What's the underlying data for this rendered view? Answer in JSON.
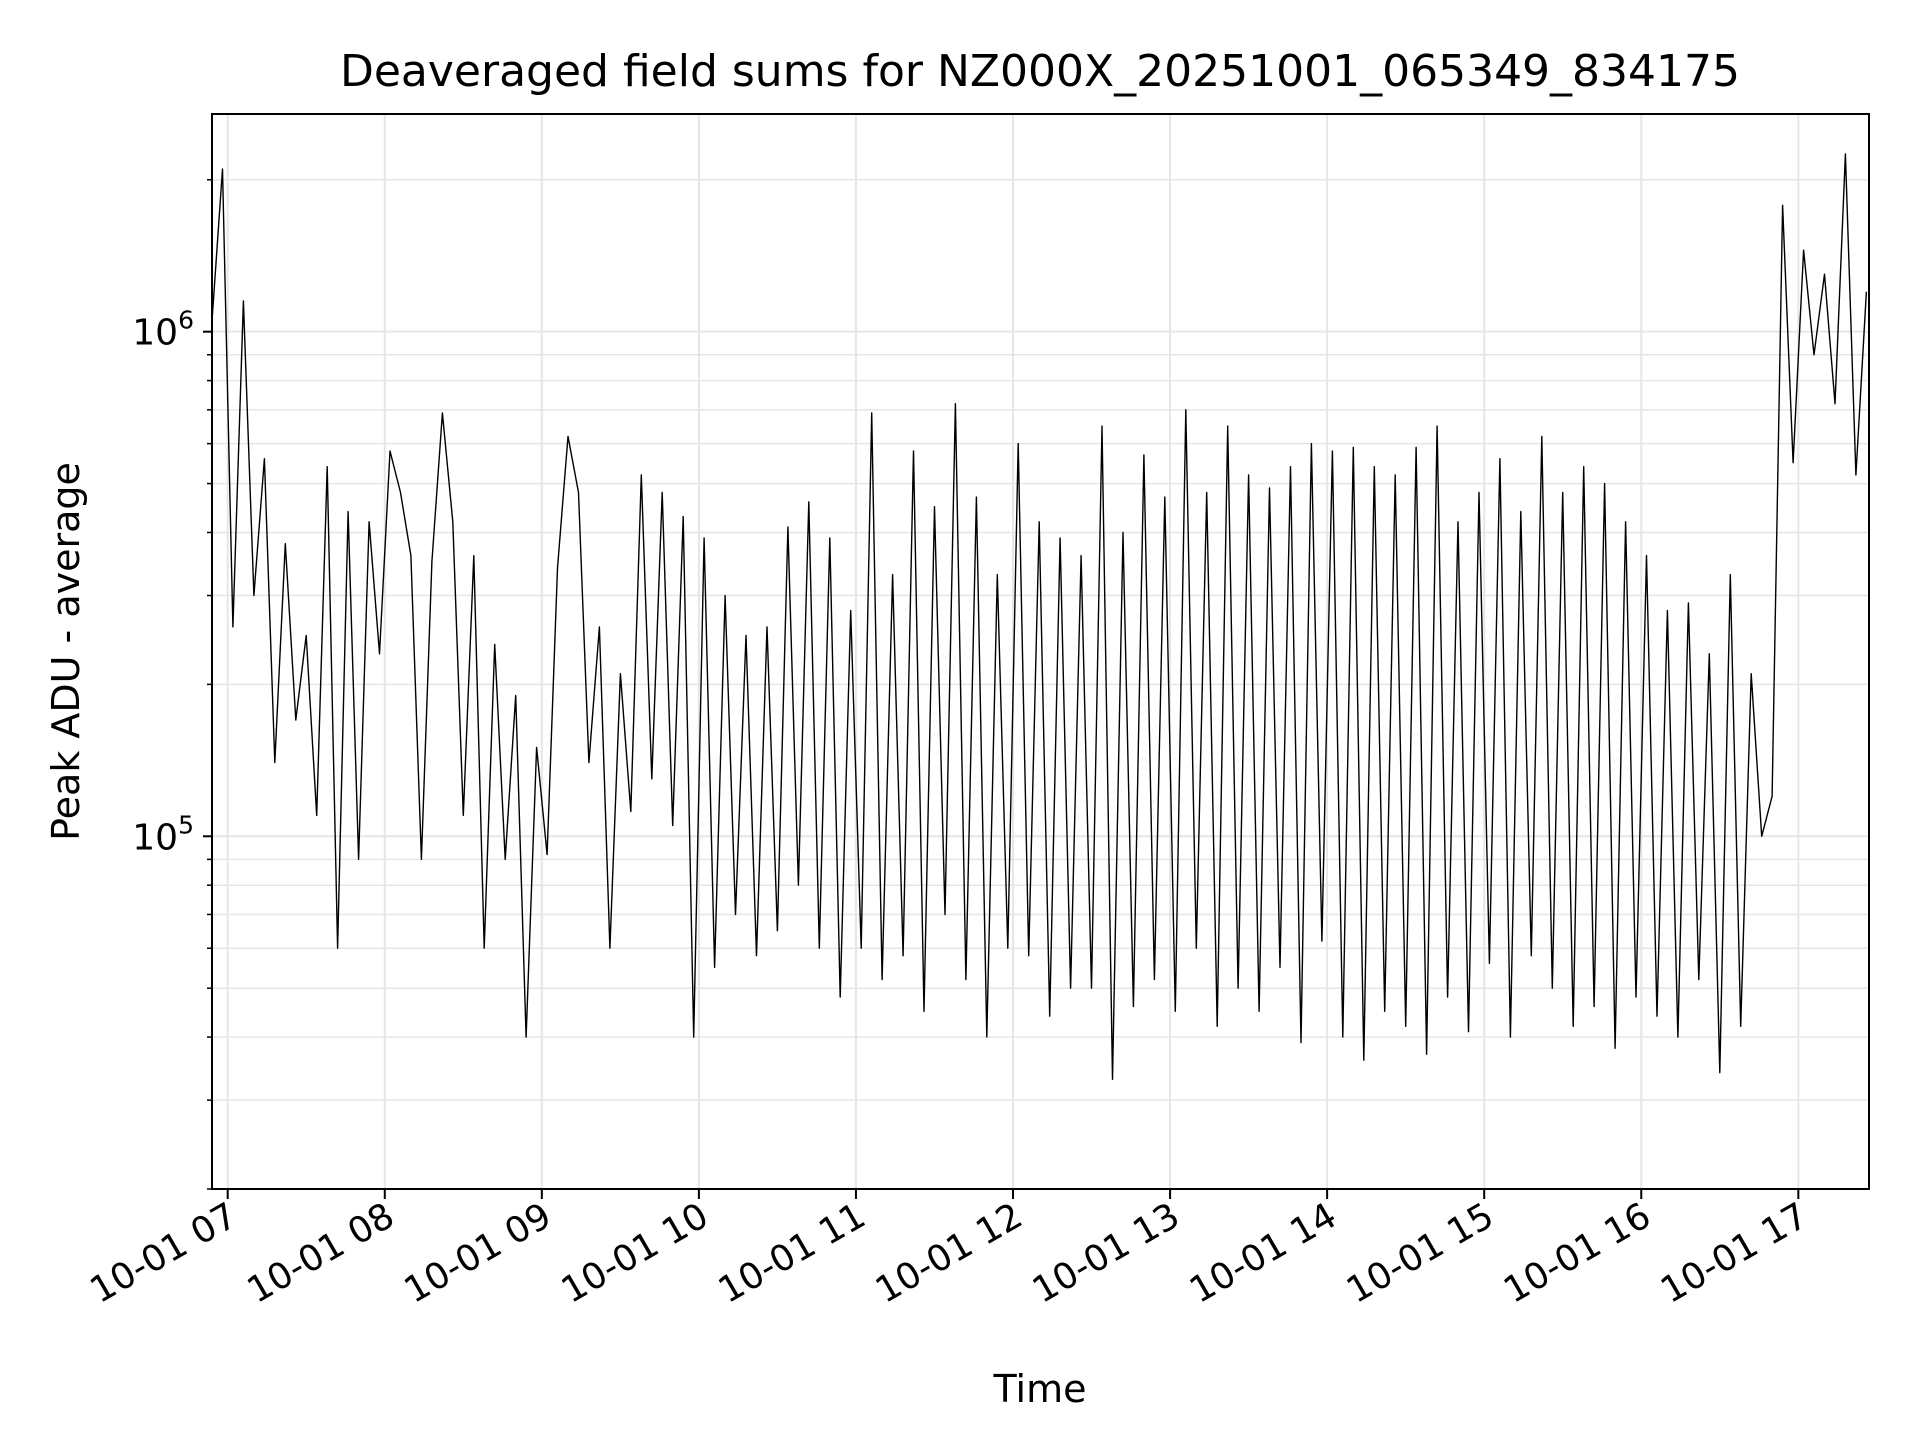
{
  "chart_data": {
    "type": "line",
    "title": "Deaveraged field sums for NZ000X_20251001_065349_834175",
    "xlabel": "Time",
    "ylabel": "Peak ADU - average",
    "yscale": "log",
    "ylim": [
      20000,
      2700000
    ],
    "xlim": [
      "2025-10-01 06:54",
      "2025-10-01 17:27"
    ],
    "grid": true,
    "line_color": "#000000",
    "x_ticks": [
      {
        "value": "2025-10-01 07:00",
        "label": "10-01 07"
      },
      {
        "value": "2025-10-01 08:00",
        "label": "10-01 08"
      },
      {
        "value": "2025-10-01 09:00",
        "label": "10-01 09"
      },
      {
        "value": "2025-10-01 10:00",
        "label": "10-01 10"
      },
      {
        "value": "2025-10-01 11:00",
        "label": "10-01 11"
      },
      {
        "value": "2025-10-01 12:00",
        "label": "10-01 12"
      },
      {
        "value": "2025-10-01 13:00",
        "label": "10-01 13"
      },
      {
        "value": "2025-10-01 14:00",
        "label": "10-01 14"
      },
      {
        "value": "2025-10-01 15:00",
        "label": "10-01 15"
      },
      {
        "value": "2025-10-01 16:00",
        "label": "10-01 16"
      },
      {
        "value": "2025-10-01 17:00",
        "label": "10-01 17"
      }
    ],
    "y_ticks": [
      {
        "value": 100000,
        "base": "10",
        "exp": "5"
      },
      {
        "value": 1000000,
        "base": "10",
        "exp": "6"
      }
    ],
    "series": [
      {
        "x": [
          "2025-10-01 06:54",
          "2025-10-01 06:58",
          "2025-10-01 07:02",
          "2025-10-01 07:06",
          "2025-10-01 07:10",
          "2025-10-01 07:14",
          "2025-10-01 07:18",
          "2025-10-01 07:22",
          "2025-10-01 07:26",
          "2025-10-01 07:30",
          "2025-10-01 07:34",
          "2025-10-01 07:38",
          "2025-10-01 07:42",
          "2025-10-01 07:46",
          "2025-10-01 07:50",
          "2025-10-01 07:54",
          "2025-10-01 07:58",
          "2025-10-01 08:02",
          "2025-10-01 08:06",
          "2025-10-01 08:10",
          "2025-10-01 08:14",
          "2025-10-01 08:18",
          "2025-10-01 08:22",
          "2025-10-01 08:26",
          "2025-10-01 08:30",
          "2025-10-01 08:34",
          "2025-10-01 08:38",
          "2025-10-01 08:42",
          "2025-10-01 08:46",
          "2025-10-01 08:50",
          "2025-10-01 08:54",
          "2025-10-01 08:58",
          "2025-10-01 09:02",
          "2025-10-01 09:06",
          "2025-10-01 09:10",
          "2025-10-01 09:14",
          "2025-10-01 09:18",
          "2025-10-01 09:22",
          "2025-10-01 09:26",
          "2025-10-01 09:30",
          "2025-10-01 09:34",
          "2025-10-01 09:38",
          "2025-10-01 09:42",
          "2025-10-01 09:46",
          "2025-10-01 09:50",
          "2025-10-01 09:54",
          "2025-10-01 09:58",
          "2025-10-01 10:02",
          "2025-10-01 10:06",
          "2025-10-01 10:10",
          "2025-10-01 10:14",
          "2025-10-01 10:18",
          "2025-10-01 10:22",
          "2025-10-01 10:26",
          "2025-10-01 10:30",
          "2025-10-01 10:34",
          "2025-10-01 10:38",
          "2025-10-01 10:42",
          "2025-10-01 10:46",
          "2025-10-01 10:50",
          "2025-10-01 10:54",
          "2025-10-01 10:58",
          "2025-10-01 11:02",
          "2025-10-01 11:06",
          "2025-10-01 11:10",
          "2025-10-01 11:14",
          "2025-10-01 11:18",
          "2025-10-01 11:22",
          "2025-10-01 11:26",
          "2025-10-01 11:30",
          "2025-10-01 11:34",
          "2025-10-01 11:38",
          "2025-10-01 11:42",
          "2025-10-01 11:46",
          "2025-10-01 11:50",
          "2025-10-01 11:54",
          "2025-10-01 11:58",
          "2025-10-01 12:02",
          "2025-10-01 12:06",
          "2025-10-01 12:10",
          "2025-10-01 12:14",
          "2025-10-01 12:18",
          "2025-10-01 12:22",
          "2025-10-01 12:26",
          "2025-10-01 12:30",
          "2025-10-01 12:34",
          "2025-10-01 12:38",
          "2025-10-01 12:42",
          "2025-10-01 12:46",
          "2025-10-01 12:50",
          "2025-10-01 12:54",
          "2025-10-01 12:58",
          "2025-10-01 13:02",
          "2025-10-01 13:06",
          "2025-10-01 13:10",
          "2025-10-01 13:14",
          "2025-10-01 13:18",
          "2025-10-01 13:22",
          "2025-10-01 13:26",
          "2025-10-01 13:30",
          "2025-10-01 13:34",
          "2025-10-01 13:38",
          "2025-10-01 13:42",
          "2025-10-01 13:46",
          "2025-10-01 13:50",
          "2025-10-01 13:54",
          "2025-10-01 13:58",
          "2025-10-01 14:02",
          "2025-10-01 14:06",
          "2025-10-01 14:10",
          "2025-10-01 14:14",
          "2025-10-01 14:18",
          "2025-10-01 14:22",
          "2025-10-01 14:26",
          "2025-10-01 14:30",
          "2025-10-01 14:34",
          "2025-10-01 14:38",
          "2025-10-01 14:42",
          "2025-10-01 14:46",
          "2025-10-01 14:50",
          "2025-10-01 14:54",
          "2025-10-01 14:58",
          "2025-10-01 15:02",
          "2025-10-01 15:06",
          "2025-10-01 15:10",
          "2025-10-01 15:14",
          "2025-10-01 15:18",
          "2025-10-01 15:22",
          "2025-10-01 15:26",
          "2025-10-01 15:30",
          "2025-10-01 15:34",
          "2025-10-01 15:38",
          "2025-10-01 15:42",
          "2025-10-01 15:46",
          "2025-10-01 15:50",
          "2025-10-01 15:54",
          "2025-10-01 15:58",
          "2025-10-01 16:02",
          "2025-10-01 16:06",
          "2025-10-01 16:10",
          "2025-10-01 16:14",
          "2025-10-01 16:18",
          "2025-10-01 16:22",
          "2025-10-01 16:26",
          "2025-10-01 16:30",
          "2025-10-01 16:34",
          "2025-10-01 16:38",
          "2025-10-01 16:42",
          "2025-10-01 16:46",
          "2025-10-01 16:50",
          "2025-10-01 16:54",
          "2025-10-01 16:58",
          "2025-10-01 17:02",
          "2025-10-01 17:06",
          "2025-10-01 17:10",
          "2025-10-01 17:14",
          "2025-10-01 17:18",
          "2025-10-01 17:22",
          "2025-10-01 17:26"
        ],
        "y": [
          1050000,
          2100000,
          260000,
          1150000,
          300000,
          560000,
          140000,
          380000,
          170000,
          250000,
          110000,
          540000,
          60000,
          440000,
          90000,
          420000,
          230000,
          580000,
          480000,
          360000,
          90000,
          350000,
          690000,
          420000,
          110000,
          360000,
          60000,
          240000,
          90000,
          190000,
          40000,
          150000,
          92000,
          340000,
          620000,
          480000,
          140000,
          260000,
          60000,
          210000,
          112000,
          520000,
          130000,
          480000,
          105000,
          430000,
          40000,
          390000,
          55000,
          300000,
          70000,
          250000,
          58000,
          260000,
          65000,
          410000,
          80000,
          460000,
          60000,
          390000,
          48000,
          280000,
          60000,
          690000,
          52000,
          330000,
          58000,
          580000,
          45000,
          450000,
          70000,
          720000,
          52000,
          470000,
          40000,
          330000,
          60000,
          600000,
          58000,
          420000,
          44000,
          390000,
          50000,
          360000,
          50000,
          650000,
          33000,
          400000,
          46000,
          570000,
          52000,
          470000,
          45000,
          700000,
          60000,
          480000,
          42000,
          650000,
          50000,
          520000,
          45000,
          490000,
          55000,
          540000,
          39000,
          600000,
          62000,
          580000,
          40000,
          590000,
          36000,
          540000,
          45000,
          520000,
          42000,
          590000,
          37000,
          650000,
          48000,
          420000,
          41000,
          480000,
          56000,
          560000,
          40000,
          440000,
          58000,
          620000,
          50000,
          480000,
          42000,
          540000,
          46000,
          500000,
          38000,
          420000,
          48000,
          360000,
          44000,
          280000,
          40000,
          290000,
          52000,
          230000,
          34000,
          330000,
          42000,
          210000,
          100000,
          120000,
          1780000,
          550000,
          1450000,
          900000,
          1300000,
          720000,
          2250000,
          520000,
          1200000
        ]
      }
    ]
  }
}
